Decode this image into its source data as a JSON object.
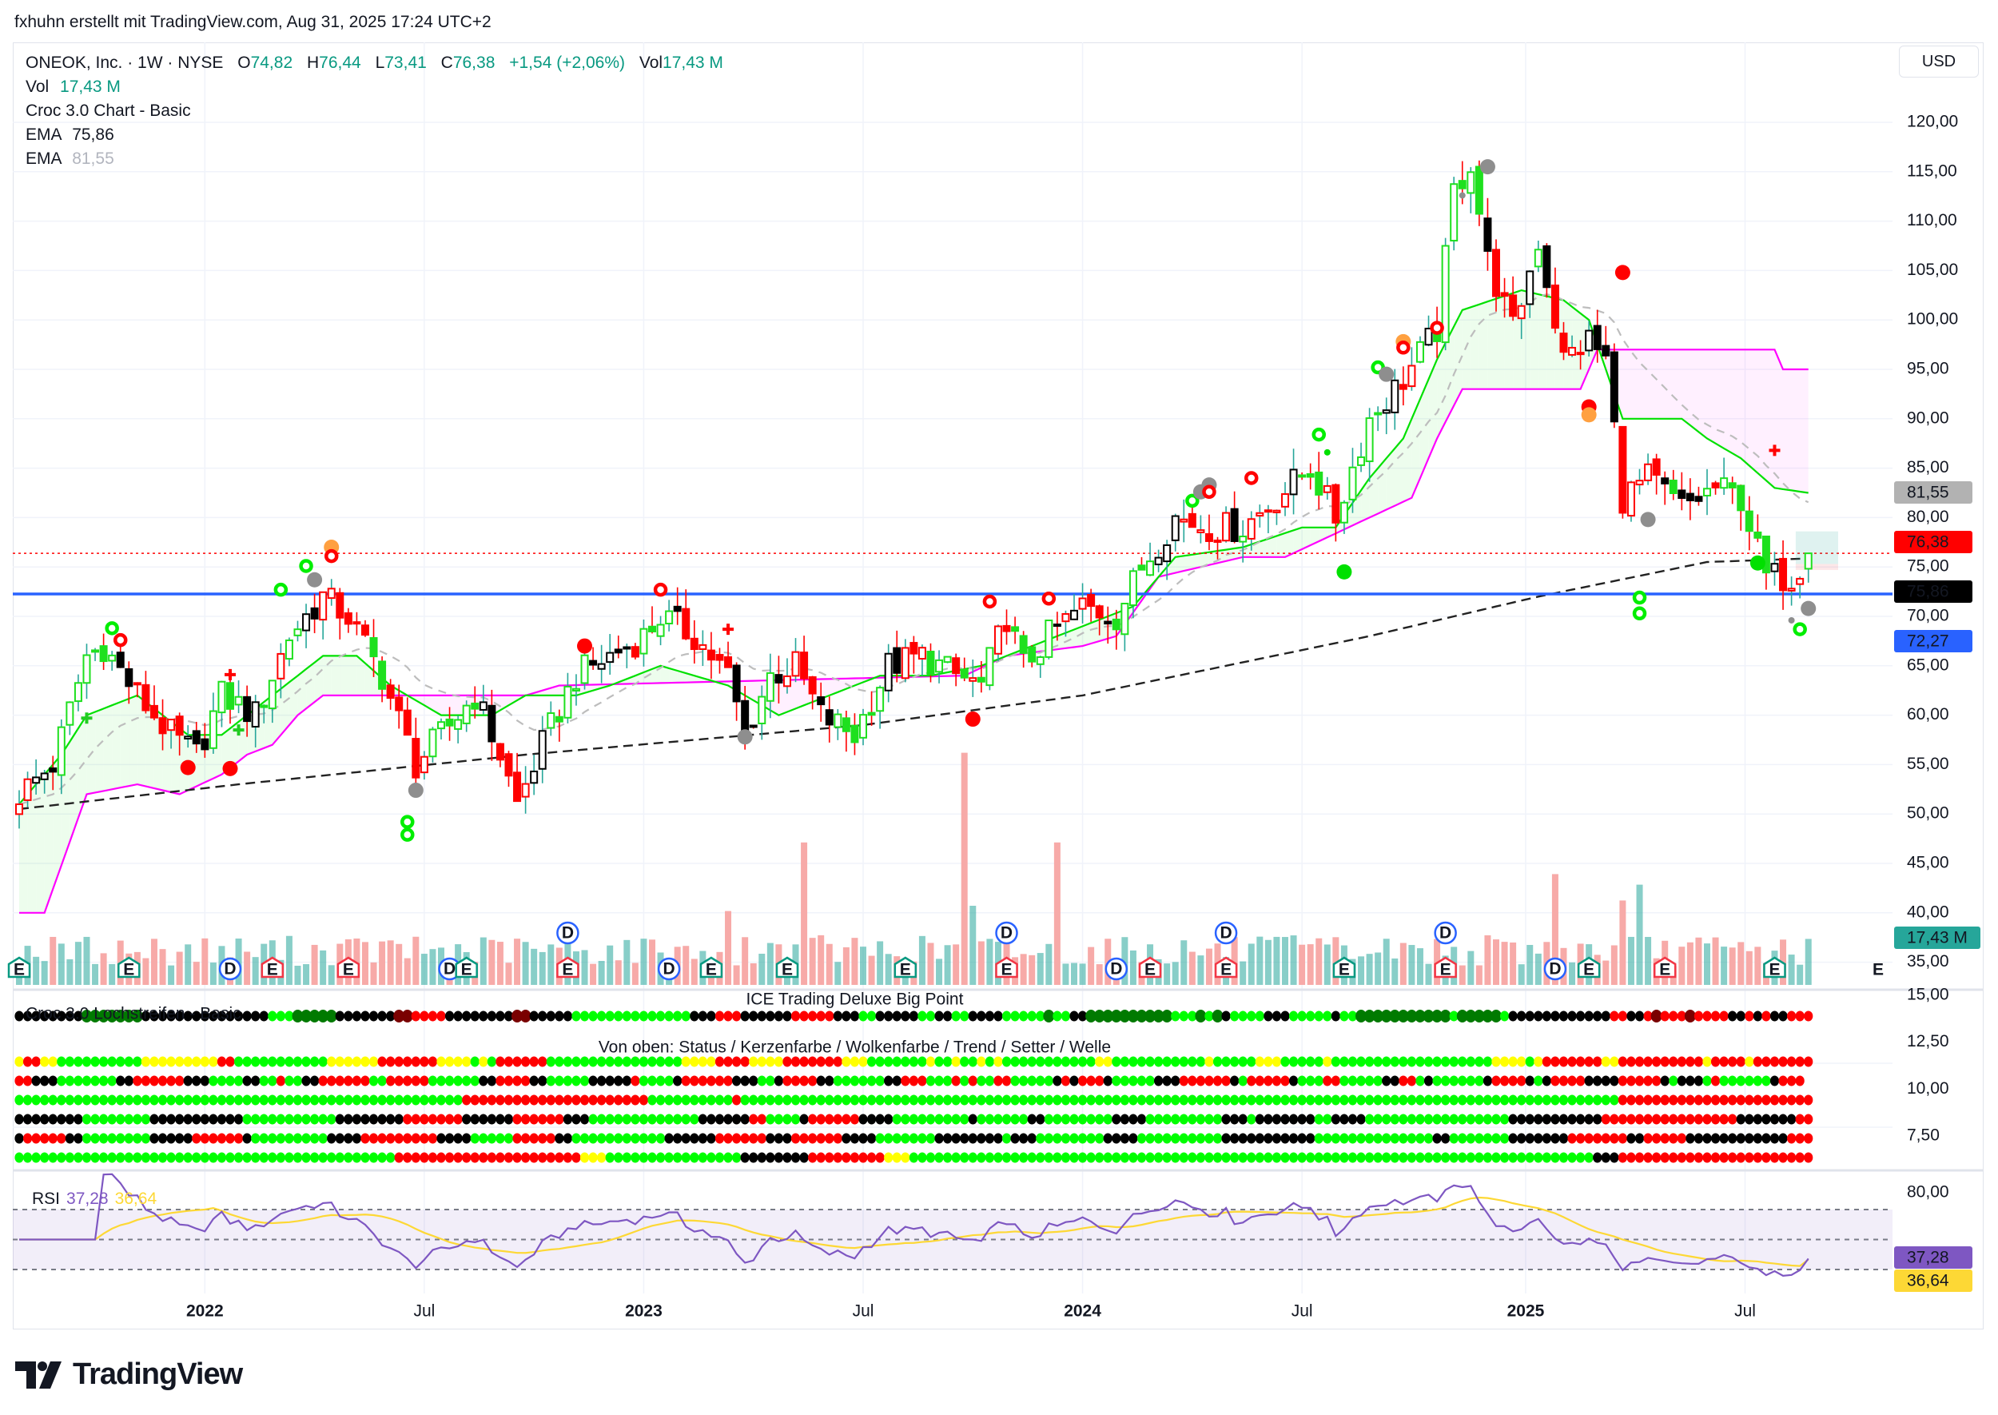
{
  "watermark": "fxhuhn erstellt mit TradingView.com, Aug 31, 2025 17:24 UTC+2",
  "legend": {
    "symbol": "ONEOK, Inc. · 1W · NYSE",
    "o_label": "O",
    "o": "74,82",
    "h_label": "H",
    "h": "76,44",
    "l_label": "L",
    "l": "73,41",
    "c_label": "C",
    "c": "76,38",
    "change": "+1,54 (+2,06%)",
    "vol_label": "Vol",
    "vol": "17,43 M"
  },
  "indicators": [
    {
      "name": "Vol",
      "value": "17,43 M"
    },
    {
      "name": "Croc 3.0 Chart - Basic"
    },
    {
      "name": "EMA",
      "value": "75,86"
    },
    {
      "name": "EMA",
      "value": "81,55"
    }
  ],
  "currency": "USD",
  "price_ticks": [
    "120,00",
    "115,00",
    "110,00",
    "105,00",
    "100,00",
    "95,00",
    "90,00",
    "85,00",
    "80,00",
    "75,00",
    "70,00",
    "65,00",
    "60,00",
    "55,00",
    "50,00",
    "45,00",
    "40,00",
    "35,00"
  ],
  "price_badges": {
    "ema_slow": "81,55",
    "last_close": "76,38",
    "ema_long": "75,86",
    "support": "72,27",
    "volume": "17,43 M"
  },
  "volume_marker": "E",
  "ice": {
    "title": "ICE Trading Deluxe Big Point",
    "subtitle": "Von oben: Status / Kerzenfarbe / Wolkenfarbe / Trend / Setter / Welle",
    "lochstreifen_label": "Croc 3.0 Lochstreifen - Basic",
    "ticks": [
      "15,00",
      "12,50",
      "10,00",
      "7,50"
    ],
    "lochstreifen": "K8 D7 K15 G3 D5 K7 M2 R4 K8 M2 K5 G14 K3 R3 K6 R5 K3 G2 K5 G2 K2 G2 K4 G5 D1 G2 K2 D9 D1 G3 D1 G1 D1 K1 G4 K3 G5 K1 G2 D11 G1 D5 G1 K12 R2 K2 R1 M1 R3 M1 R4 K2 R1 K1 R1 K2 R3",
    "rows": [
      {
        "name": "Status",
        "rle": "Y1 R2 Y2 G10 Y9 R2 G11 Y6 R7 Y4 G1 Y1 G1 R6 G16 Y4 R4 Y4 R7 Y3 G7 Y1 G2 Y1 G2 Y1 G1 Y1 G11 Y2 G11 Y1 G4 G1 Y3 G5 Y1 G19 Y4 G1 Y1 R7 Y2 R10 Y1 R4 Y1 R7"
      },
      {
        "name": "Kerzenfarbe",
        "rle": "R2 K3 G7 K2 R6 K3 G4 K2 G2 R1 G2 K2 R6 G2 R5 G6 K2 R4 K2 G5 K5 R1 G4 K1 R6 K3 G2 K1 R4 K2 G6 K2 R3 G3 R1 G1 R1 G2 R2 G5 K1 R1 K1 R3 K1 G5 K3 R2 R4 K1 G1 R5 K1 G3 R2 G5 K2 R2 G1 K1 G6 K1 R4 K1 G1 K1 R4 K4 R5 K1 G1 K3 G1 R1 G6 K1 R3"
      },
      {
        "name": "Wolkenfarbe",
        "rle": "G53 R22 G10 R1 G104 R23"
      },
      {
        "name": "Trend",
        "rle": "K8 G8 K11 G11 K8 R7 K6 R6 K3 G13 K6 R2 G4 K1 R6 K4 G9 K1 G6 K2 G8 K4 G6 G3 K3 G1 K7 G2 K4 G17 K11 R16 K7 R2"
      },
      {
        "name": "Setter",
        "rle": "K1 R5 K2 G8 K5 R6 K1 G9 K4 R9 K4 G5 R5 K2 G11 K6 R6 K3 R6 K4 G7 K8 G1 K3 G8 K4 G7 G3 K11 G14 K2 G7 K7 R7 K2 R5 K12 R3"
      },
      {
        "name": "Welle",
        "rle": "G45 R22 Y3 G16 K8 R9 Y3 G81 K3 R23"
      }
    ]
  },
  "rsi": {
    "label": "RSI",
    "value": "37,28",
    "ma_value": "36,64",
    "tick": "80,00"
  },
  "x_labels": [
    {
      "label": "2022",
      "week": 22,
      "bold": true
    },
    {
      "label": "Jul",
      "week": 48,
      "bold": false
    },
    {
      "label": "2023",
      "week": 74,
      "bold": true
    },
    {
      "label": "Jul",
      "week": 100,
      "bold": false
    },
    {
      "label": "2024",
      "week": 126,
      "bold": true
    },
    {
      "label": "Jul",
      "week": 152,
      "bold": false
    },
    {
      "label": "2025",
      "week": 178.5,
      "bold": true
    },
    {
      "label": "Jul",
      "week": 204.5,
      "bold": false
    }
  ],
  "logo": "TradingView",
  "colors": {
    "up": "#089981",
    "green": "#1ee01e",
    "red": "#ff0000",
    "black": "#000000",
    "blue_line": "#2962ff",
    "magenta": "#ff00ff",
    "rsi": "#7e57c2",
    "rsi_ma": "#fdd835",
    "vol_up": "#26a69a",
    "vol_down": "#f7a5a3",
    "ema_slow_badge": "#b2b2b2"
  },
  "chart_data": {
    "type": "candlestick",
    "title": "ONEOK, Inc. · 1W · NYSE",
    "ylabel": "USD",
    "ylim": [
      35,
      120
    ],
    "weeks": 213,
    "last_bar": {
      "open": 74.82,
      "high": 76.44,
      "low": 73.41,
      "close": 76.38,
      "volume_m": 17.43
    },
    "close_anchors": [
      [
        0,
        52
      ],
      [
        4,
        55
      ],
      [
        8,
        66
      ],
      [
        10,
        67
      ],
      [
        14,
        62
      ],
      [
        18,
        58
      ],
      [
        21,
        56
      ],
      [
        24,
        62
      ],
      [
        28,
        60
      ],
      [
        32,
        68
      ],
      [
        36,
        72
      ],
      [
        39,
        70
      ],
      [
        43,
        64
      ],
      [
        47,
        55
      ],
      [
        50,
        58
      ],
      [
        54,
        62
      ],
      [
        57,
        56
      ],
      [
        59,
        51
      ],
      [
        62,
        57
      ],
      [
        66,
        64
      ],
      [
        70,
        66
      ],
      [
        74,
        68
      ],
      [
        76,
        70
      ],
      [
        80,
        68
      ],
      [
        84,
        64
      ],
      [
        86,
        58
      ],
      [
        89,
        64
      ],
      [
        92,
        65
      ],
      [
        95,
        60
      ],
      [
        99,
        58
      ],
      [
        103,
        65
      ],
      [
        107,
        66
      ],
      [
        111,
        64
      ],
      [
        114,
        63
      ],
      [
        117,
        70
      ],
      [
        119,
        65
      ],
      [
        122,
        68
      ],
      [
        126,
        71
      ],
      [
        130,
        70
      ],
      [
        133,
        75
      ],
      [
        137,
        80
      ],
      [
        141,
        79
      ],
      [
        145,
        79
      ],
      [
        149,
        82
      ],
      [
        153,
        85
      ],
      [
        156,
        80
      ],
      [
        160,
        90
      ],
      [
        164,
        94
      ],
      [
        168,
        99
      ],
      [
        170,
        113
      ],
      [
        172,
        116
      ],
      [
        174,
        106
      ],
      [
        177,
        99
      ],
      [
        180,
        108
      ],
      [
        183,
        96
      ],
      [
        186,
        98
      ],
      [
        188,
        96
      ],
      [
        190,
        82
      ],
      [
        193,
        84
      ],
      [
        197,
        81
      ],
      [
        201,
        83
      ],
      [
        204,
        82
      ],
      [
        207,
        74
      ],
      [
        210,
        74
      ],
      [
        212,
        76.38
      ]
    ],
    "ema_long_anchors": [
      [
        0,
        50.5
      ],
      [
        26,
        53
      ],
      [
        60,
        56
      ],
      [
        100,
        59
      ],
      [
        126,
        62
      ],
      [
        160,
        68
      ],
      [
        180,
        72
      ],
      [
        200,
        75.5
      ],
      [
        212,
        75.86
      ]
    ],
    "ema_slow_last": 81.55,
    "cloud_upper_green": [
      [
        0,
        51
      ],
      [
        5,
        56
      ],
      [
        8,
        60
      ],
      [
        14,
        62
      ],
      [
        20,
        58
      ],
      [
        24,
        58
      ],
      [
        30,
        62
      ],
      [
        36,
        66
      ],
      [
        40,
        66
      ],
      [
        44,
        63
      ],
      [
        50,
        60
      ],
      [
        56,
        60
      ],
      [
        60,
        62
      ],
      [
        66,
        62
      ],
      [
        70,
        63
      ],
      [
        76,
        65
      ],
      [
        84,
        63
      ],
      [
        90,
        60
      ],
      [
        96,
        62
      ],
      [
        102,
        64
      ],
      [
        108,
        64
      ],
      [
        114,
        65
      ],
      [
        120,
        67
      ],
      [
        126,
        69
      ],
      [
        132,
        71
      ],
      [
        137,
        76
      ],
      [
        145,
        77
      ],
      [
        152,
        79
      ],
      [
        156,
        79
      ],
      [
        160,
        84
      ],
      [
        164,
        88
      ],
      [
        168,
        96
      ],
      [
        171,
        101
      ],
      [
        178,
        103
      ],
      [
        183,
        102
      ],
      [
        186,
        100
      ],
      [
        190,
        90
      ],
      [
        197,
        90
      ],
      [
        200,
        88
      ],
      [
        204,
        86
      ],
      [
        208,
        83
      ],
      [
        212,
        82.5
      ]
    ],
    "cloud_lower_magenta": [
      [
        0,
        40
      ],
      [
        3,
        40
      ],
      [
        8,
        52
      ],
      [
        14,
        53
      ],
      [
        19,
        52
      ],
      [
        24,
        54
      ],
      [
        27,
        56
      ],
      [
        30,
        57
      ],
      [
        33,
        60
      ],
      [
        36,
        62
      ],
      [
        60,
        62
      ],
      [
        64,
        63
      ],
      [
        112,
        64
      ],
      [
        117,
        66
      ],
      [
        126,
        67
      ],
      [
        130,
        68
      ],
      [
        135,
        74
      ],
      [
        145,
        76
      ],
      [
        150,
        76
      ],
      [
        155,
        78
      ],
      [
        160,
        80
      ],
      [
        165,
        82
      ],
      [
        168,
        88
      ],
      [
        171,
        93
      ],
      [
        185,
        93
      ],
      [
        187,
        97
      ],
      [
        208,
        97
      ],
      [
        209,
        95
      ],
      [
        212,
        95
      ]
    ],
    "support_level": 72.27,
    "volume_base_m": 13,
    "volume_spikes_m": [
      [
        84,
        28
      ],
      [
        93,
        54
      ],
      [
        112,
        88
      ],
      [
        113,
        30
      ],
      [
        123,
        54
      ],
      [
        182,
        42
      ],
      [
        192,
        38
      ],
      [
        190,
        32
      ]
    ],
    "signals": [
      {
        "week": 11,
        "price": 68.8,
        "type": "ring-green"
      },
      {
        "week": 12,
        "price": 67.6,
        "type": "ring-red"
      },
      {
        "week": 20,
        "price": 54.7,
        "type": "dot-red"
      },
      {
        "week": 25,
        "price": 54.6,
        "type": "dot-red"
      },
      {
        "week": 25,
        "price": 64.1,
        "type": "cross-red"
      },
      {
        "week": 26,
        "price": 58.5,
        "type": "cross-green"
      },
      {
        "week": 8,
        "price": 59.7,
        "type": "cross-green"
      },
      {
        "week": 31,
        "price": 72.7,
        "type": "ring-green"
      },
      {
        "week": 34,
        "price": 75.1,
        "type": "ring-green"
      },
      {
        "week": 35,
        "price": 73.7,
        "type": "dot-grey"
      },
      {
        "week": 37,
        "price": 77.0,
        "type": "dot-orange"
      },
      {
        "week": 37,
        "price": 76.1,
        "type": "ring-red"
      },
      {
        "week": 46,
        "price": 49.2,
        "type": "ring-green"
      },
      {
        "week": 46,
        "price": 47.9,
        "type": "ring-green"
      },
      {
        "week": 47,
        "price": 52.4,
        "type": "dot-grey"
      },
      {
        "week": 67,
        "price": 67.0,
        "type": "dot-red"
      },
      {
        "week": 76,
        "price": 72.7,
        "type": "ring-red"
      },
      {
        "week": 84,
        "price": 68.7,
        "type": "cross-red"
      },
      {
        "week": 86,
        "price": 57.8,
        "type": "dot-grey"
      },
      {
        "week": 113,
        "price": 59.6,
        "type": "dot-red"
      },
      {
        "week": 115,
        "price": 71.5,
        "type": "ring-red"
      },
      {
        "week": 122,
        "price": 71.8,
        "type": "ring-red"
      },
      {
        "week": 139,
        "price": 81.7,
        "type": "ring-green"
      },
      {
        "week": 140,
        "price": 82.6,
        "type": "dot-grey"
      },
      {
        "week": 141,
        "price": 83.3,
        "type": "dot-grey"
      },
      {
        "week": 141,
        "price": 82.6,
        "type": "ring-red"
      },
      {
        "week": 146,
        "price": 84.0,
        "type": "ring-red"
      },
      {
        "week": 154,
        "price": 88.4,
        "type": "ring-green"
      },
      {
        "week": 155,
        "price": 86.6,
        "type": "dot-green-small"
      },
      {
        "week": 157,
        "price": 74.5,
        "type": "dot-green"
      },
      {
        "week": 161,
        "price": 95.2,
        "type": "ring-green"
      },
      {
        "week": 162,
        "price": 94.5,
        "type": "dot-grey"
      },
      {
        "week": 164,
        "price": 97.8,
        "type": "dot-orange"
      },
      {
        "week": 164,
        "price": 97.2,
        "type": "ring-red"
      },
      {
        "week": 168,
        "price": 99.2,
        "type": "ring-red"
      },
      {
        "week": 171,
        "price": 112.6,
        "type": "dot-grey-small"
      },
      {
        "week": 174,
        "price": 115.5,
        "type": "dot-grey"
      },
      {
        "week": 190,
        "price": 104.8,
        "type": "dot-red"
      },
      {
        "week": 186,
        "price": 91.2,
        "type": "dot-red"
      },
      {
        "week": 186,
        "price": 90.4,
        "type": "dot-orange"
      },
      {
        "week": 193,
        "price": 79.8,
        "type": "dot-grey"
      },
      {
        "week": 192,
        "price": 71.9,
        "type": "ring-green"
      },
      {
        "week": 192,
        "price": 70.3,
        "type": "ring-green"
      },
      {
        "week": 206,
        "price": 75.4,
        "type": "dot-green"
      },
      {
        "week": 208,
        "price": 86.8,
        "type": "cross-red"
      },
      {
        "week": 211,
        "price": 68.7,
        "type": "ring-green"
      },
      {
        "week": 210,
        "price": 69.6,
        "type": "dot-grey-small"
      },
      {
        "week": 212,
        "price": 70.8,
        "type": "dot-grey"
      }
    ],
    "events": [
      {
        "type": "E",
        "week": 0,
        "tone": "green",
        "raised": false
      },
      {
        "type": "E",
        "week": 13,
        "tone": "green",
        "raised": false
      },
      {
        "type": "D",
        "week": 25,
        "raised": false
      },
      {
        "type": "E",
        "week": 30,
        "tone": "red",
        "raised": false
      },
      {
        "type": "E",
        "week": 39,
        "tone": "red",
        "raised": false
      },
      {
        "type": "D",
        "week": 51,
        "raised": false
      },
      {
        "type": "E",
        "week": 53,
        "tone": "green",
        "raised": false
      },
      {
        "type": "D",
        "week": 65,
        "raised": true
      },
      {
        "type": "E",
        "week": 65,
        "tone": "red",
        "raised": false
      },
      {
        "type": "D",
        "week": 77,
        "raised": false
      },
      {
        "type": "E",
        "week": 82,
        "tone": "green",
        "raised": false
      },
      {
        "type": "E",
        "week": 91,
        "tone": "green",
        "raised": false
      },
      {
        "type": "E",
        "week": 105,
        "tone": "green",
        "raised": false
      },
      {
        "type": "D",
        "week": 117,
        "raised": true
      },
      {
        "type": "E",
        "week": 117,
        "tone": "red",
        "raised": false
      },
      {
        "type": "D",
        "week": 130,
        "raised": false
      },
      {
        "type": "E",
        "week": 134,
        "tone": "red",
        "raised": false
      },
      {
        "type": "D",
        "week": 143,
        "raised": true
      },
      {
        "type": "E",
        "week": 143,
        "tone": "red",
        "raised": false
      },
      {
        "type": "E",
        "week": 157,
        "tone": "green",
        "raised": false
      },
      {
        "type": "D",
        "week": 169,
        "raised": true
      },
      {
        "type": "E",
        "week": 169,
        "tone": "red",
        "raised": false
      },
      {
        "type": "D",
        "week": 182,
        "raised": false
      },
      {
        "type": "E",
        "week": 186,
        "tone": "green",
        "raised": false
      },
      {
        "type": "E",
        "week": 195,
        "tone": "red",
        "raised": false
      },
      {
        "type": "E",
        "week": 208,
        "tone": "green",
        "raised": false
      }
    ],
    "position_box": {
      "entry": 75.3,
      "target": 78.6,
      "stop": 74.7
    }
  }
}
